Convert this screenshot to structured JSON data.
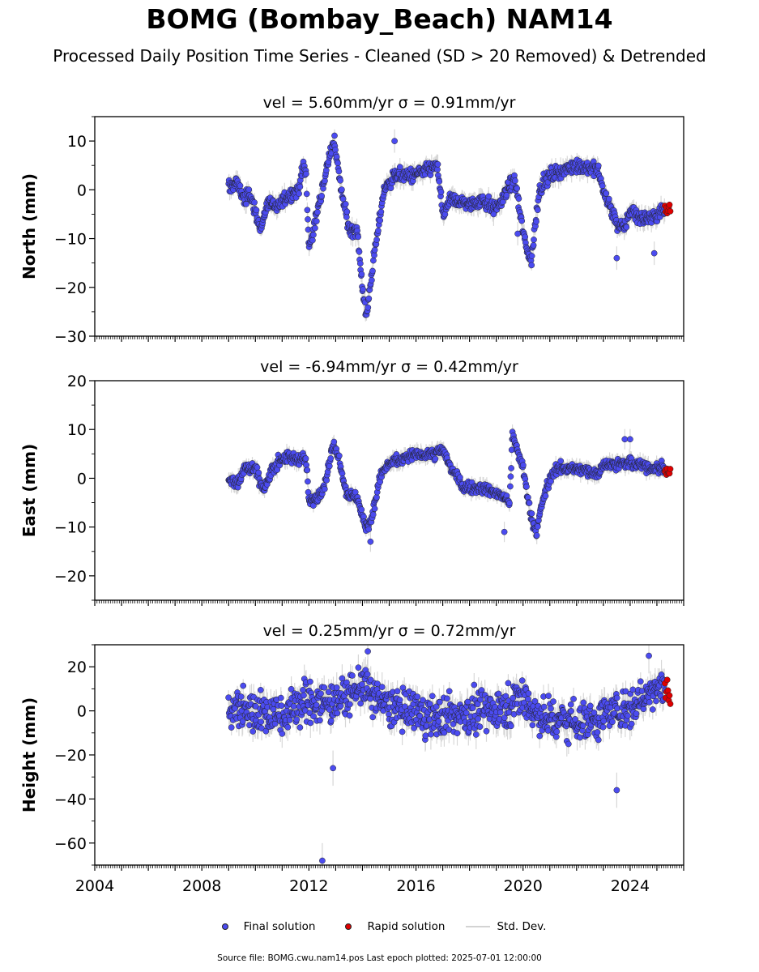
{
  "title": "BOMG (Bombay_Beach) NAM14",
  "subtitle": "Processed Daily Position Time Series - Cleaned (SD > 20 Removed) & Detrended",
  "colors": {
    "final": "#4b4bf0",
    "rapid": "#e00000",
    "stddev": "#d3d3d3",
    "edge": "#222222"
  },
  "legend": {
    "final": "Final solution",
    "rapid": "Rapid solution",
    "stddev": "Std. Dev."
  },
  "source_text": "Source file: BOMG.cwu.nam14.pos  Last epoch plotted: 2025-07-01 12:00:00",
  "chart_data": [
    {
      "type": "scatter",
      "panel": "north",
      "title": "vel = 5.60mm/yr   σ = 0.91mm/yr",
      "ylabel": "North (mm)",
      "xlim": [
        2004,
        2026
      ],
      "ylim": [
        -30,
        15
      ],
      "yticks": [
        -30,
        -20,
        -10,
        0,
        10
      ],
      "x_start": 2009.0,
      "x_end": 2025.3,
      "rapid_start": 2025.3,
      "rapid_end": 2025.5,
      "rapid_range": [
        -5,
        -3
      ],
      "noise": 1.0,
      "sd": 1.5,
      "trend": [
        [
          2009.0,
          0.5
        ],
        [
          2009.3,
          1.5
        ],
        [
          2009.6,
          -2
        ],
        [
          2009.8,
          -1
        ],
        [
          2010.2,
          -8
        ],
        [
          2010.5,
          -2
        ],
        [
          2010.8,
          -4
        ],
        [
          2011.0,
          -2
        ],
        [
          2011.3,
          -1
        ],
        [
          2011.6,
          0
        ],
        [
          2011.8,
          5
        ],
        [
          2011.9,
          3
        ],
        [
          2012.0,
          -12
        ],
        [
          2012.3,
          -5
        ],
        [
          2012.5,
          0
        ],
        [
          2012.8,
          8
        ],
        [
          2012.95,
          10
        ],
        [
          2013.2,
          0
        ],
        [
          2013.5,
          -8
        ],
        [
          2013.8,
          -8
        ],
        [
          2014.0,
          -20
        ],
        [
          2014.15,
          -26
        ],
        [
          2014.4,
          -15
        ],
        [
          2014.8,
          0
        ],
        [
          2015.2,
          3
        ],
        [
          2016.0,
          3
        ],
        [
          2016.8,
          5
        ],
        [
          2017.0,
          -5
        ],
        [
          2017.3,
          -2
        ],
        [
          2018.0,
          -3
        ],
        [
          2018.5,
          -2
        ],
        [
          2019.0,
          -4
        ],
        [
          2019.4,
          0
        ],
        [
          2019.7,
          2
        ],
        [
          2020.0,
          -9
        ],
        [
          2020.3,
          -15
        ],
        [
          2020.6,
          0
        ],
        [
          2021.0,
          3
        ],
        [
          2022.0,
          5
        ],
        [
          2022.8,
          4
        ],
        [
          2023.0,
          0
        ],
        [
          2023.5,
          -7
        ],
        [
          2023.8,
          -8
        ],
        [
          2024.0,
          -4
        ],
        [
          2024.5,
          -6
        ],
        [
          2025.0,
          -5
        ],
        [
          2025.3,
          -4
        ]
      ],
      "outliers": [
        [
          2015.2,
          10
        ],
        [
          2018.9,
          -5
        ],
        [
          2019.8,
          -9
        ],
        [
          2023.5,
          -14
        ],
        [
          2024.9,
          -13
        ]
      ]
    },
    {
      "type": "scatter",
      "panel": "east",
      "title": "vel = -6.94mm/yr   σ = 0.42mm/yr",
      "ylabel": "East (mm)",
      "xlim": [
        2004,
        2026
      ],
      "ylim": [
        -25,
        20
      ],
      "yticks": [
        -20,
        -10,
        0,
        10,
        20
      ],
      "x_start": 2009.0,
      "x_end": 2025.3,
      "rapid_start": 2025.3,
      "rapid_end": 2025.5,
      "rapid_range": [
        0.5,
        2
      ],
      "noise": 0.8,
      "sd": 1.3,
      "trend": [
        [
          2009.0,
          0
        ],
        [
          2009.3,
          -1
        ],
        [
          2009.6,
          2
        ],
        [
          2010.0,
          2
        ],
        [
          2010.3,
          -3
        ],
        [
          2010.6,
          2
        ],
        [
          2011.0,
          4
        ],
        [
          2011.5,
          4
        ],
        [
          2011.9,
          4
        ],
        [
          2012.0,
          -5
        ],
        [
          2012.3,
          -4
        ],
        [
          2012.6,
          -1
        ],
        [
          2012.9,
          7
        ],
        [
          2013.1,
          5
        ],
        [
          2013.4,
          -3
        ],
        [
          2013.8,
          -4
        ],
        [
          2014.1,
          -10
        ],
        [
          2014.3,
          -9
        ],
        [
          2014.7,
          1
        ],
        [
          2015.0,
          3
        ],
        [
          2016.0,
          5
        ],
        [
          2016.7,
          5
        ],
        [
          2017.0,
          6
        ],
        [
          2017.3,
          2
        ],
        [
          2017.8,
          -2
        ],
        [
          2018.5,
          -2
        ],
        [
          2019.0,
          -3
        ],
        [
          2019.5,
          -5
        ],
        [
          2019.6,
          9
        ],
        [
          2020.0,
          2
        ],
        [
          2020.3,
          -8
        ],
        [
          2020.5,
          -11
        ],
        [
          2020.8,
          -3
        ],
        [
          2021.2,
          2
        ],
        [
          2022.0,
          2
        ],
        [
          2022.8,
          1
        ],
        [
          2023.0,
          3
        ],
        [
          2024.0,
          3
        ],
        [
          2025.0,
          2
        ],
        [
          2025.3,
          2
        ]
      ],
      "outliers": [
        [
          2014.3,
          -13
        ],
        [
          2019.3,
          -11
        ],
        [
          2023.8,
          8
        ],
        [
          2024.0,
          8
        ]
      ]
    },
    {
      "type": "scatter",
      "panel": "height",
      "title": "vel = 0.25mm/yr   σ = 0.72mm/yr",
      "ylabel": "Height (mm)",
      "xlim": [
        2004,
        2026
      ],
      "ylim": [
        -70,
        30
      ],
      "yticks": [
        -60,
        -40,
        -20,
        0,
        20
      ],
      "x_start": 2009.0,
      "x_end": 2025.3,
      "rapid_start": 2025.3,
      "rapid_end": 2025.5,
      "rapid_range": [
        1,
        16
      ],
      "noise": 6.5,
      "sd": 5.0,
      "trend": [
        [
          2009.0,
          0
        ],
        [
          2010.0,
          0
        ],
        [
          2011.0,
          -2
        ],
        [
          2012.0,
          5
        ],
        [
          2013.0,
          3
        ],
        [
          2014.0,
          12
        ],
        [
          2014.5,
          5
        ],
        [
          2015.5,
          0
        ],
        [
          2017.0,
          -3
        ],
        [
          2018.5,
          0
        ],
        [
          2019.5,
          3
        ],
        [
          2020.0,
          7
        ],
        [
          2020.5,
          -2
        ],
        [
          2021.5,
          -4
        ],
        [
          2022.5,
          -4
        ],
        [
          2023.5,
          0
        ],
        [
          2024.5,
          5
        ],
        [
          2025.0,
          12
        ],
        [
          2025.3,
          10
        ]
      ],
      "outliers": [
        [
          2012.5,
          -68
        ],
        [
          2023.5,
          -36
        ],
        [
          2012.9,
          -26
        ],
        [
          2024.7,
          25
        ],
        [
          2014.2,
          27
        ]
      ]
    }
  ],
  "xticks": [
    2004,
    2008,
    2012,
    2016,
    2020,
    2024
  ]
}
